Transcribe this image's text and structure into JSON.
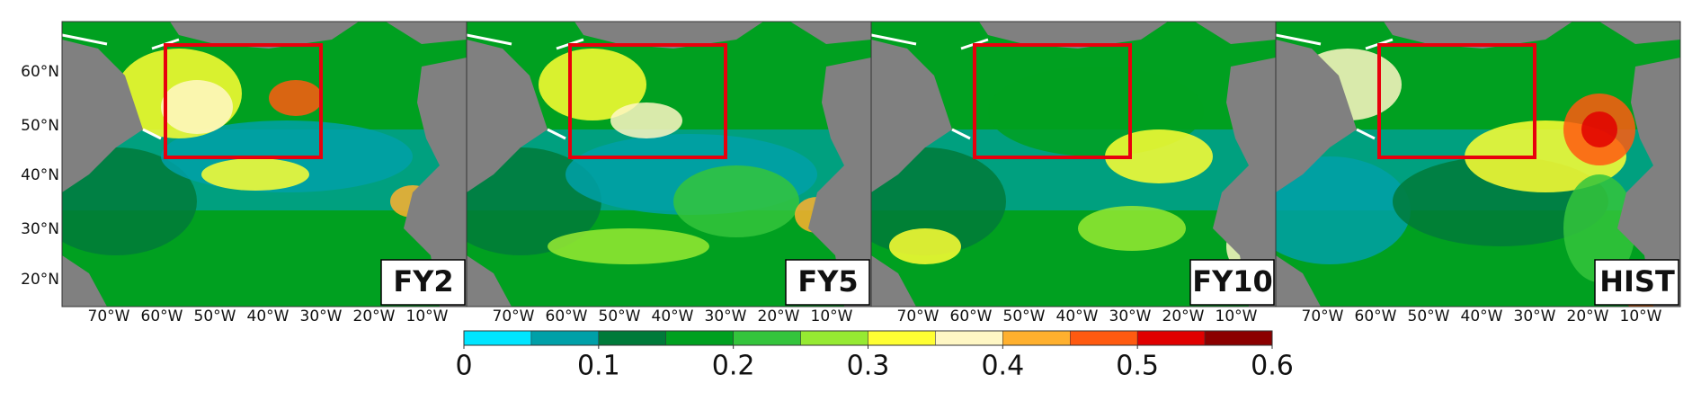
{
  "panels": [
    {
      "label": "FY2"
    },
    {
      "label": "FY5"
    },
    {
      "label": "FY10"
    },
    {
      "label": "HIST"
    }
  ],
  "lat_ticks": [
    "60°N",
    "50°N",
    "40°N",
    "30°N",
    "20°N"
  ],
  "lon_ticks": [
    "70°W",
    "60°W",
    "50°W",
    "40°W",
    "30°W",
    "20°W",
    "10°W"
  ],
  "colorbar": {
    "levels": [
      0,
      0.05,
      0.1,
      0.15,
      0.2,
      0.25,
      0.3,
      0.35,
      0.4,
      0.45,
      0.5,
      0.55,
      0.6
    ],
    "colors": [
      "#00e5ff",
      "#00a0a8",
      "#007a3a",
      "#00a020",
      "#34c43c",
      "#96ea32",
      "#ffff33",
      "#fff7c4",
      "#ffb02e",
      "#ff5a10",
      "#e00000",
      "#8b0000"
    ],
    "ticks": [
      0,
      0.1,
      0.2,
      0.3,
      0.4,
      0.5,
      0.6
    ]
  }
}
